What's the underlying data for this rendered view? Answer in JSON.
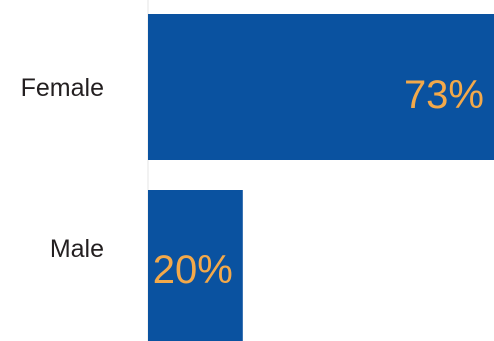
{
  "chart_data": {
    "type": "bar",
    "orientation": "horizontal",
    "categories": [
      "Female",
      "Male"
    ],
    "values": [
      73,
      20
    ],
    "value_labels": [
      "73%",
      "20%"
    ],
    "xlim": [
      0,
      73
    ],
    "grid": false,
    "legend": "none"
  },
  "colors": {
    "bar": "#0a52a0",
    "value_text": "#f3a94a",
    "category_text": "#231f20",
    "axis_line": "#e6e6e6"
  }
}
